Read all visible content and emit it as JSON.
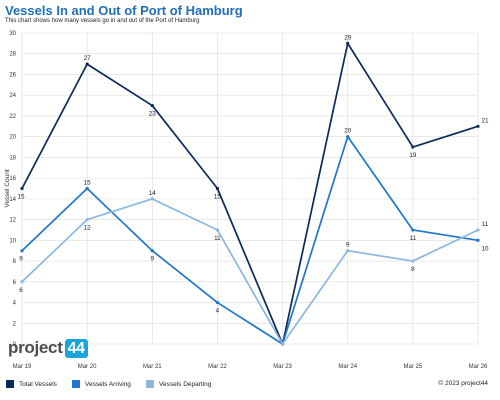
{
  "chart_data": {
    "type": "line",
    "title": "Vessels In and Out of Port of Hamburg",
    "subtitle": "This chart shows how many vessels go in and out of the Port of Hamburg",
    "ylabel": "Vessel Count",
    "xlabel": "",
    "categories": [
      "Mar 19",
      "Mar 20",
      "Mar 21",
      "Mar 22",
      "Mar 23",
      "Mar 24",
      "Mar 25",
      "Mar 26"
    ],
    "ylim": [
      0,
      30
    ],
    "yticks": [
      0,
      2,
      4,
      6,
      8,
      10,
      12,
      14,
      16,
      18,
      20,
      22,
      24,
      26,
      28,
      30
    ],
    "grid": true,
    "legend_position": "bottom-left",
    "series": [
      {
        "name": "Total Vessels",
        "color": "#0b2a5a",
        "values": [
          15,
          27,
          23,
          15,
          0,
          29,
          19,
          21
        ],
        "labels": [
          "15",
          "27",
          "23",
          "15",
          "",
          "29",
          "19",
          "21"
        ]
      },
      {
        "name": "Vessels Arriving",
        "color": "#1f77c9",
        "values": [
          9,
          15,
          9,
          4,
          0,
          20,
          11,
          10
        ],
        "labels": [
          "9",
          "15",
          "9",
          "4",
          "",
          "20",
          "11",
          "10"
        ]
      },
      {
        "name": "Vessels Departing",
        "color": "#8ab8e0",
        "values": [
          6,
          12,
          14,
          11,
          0,
          9,
          8,
          11
        ],
        "labels": [
          "6",
          "12",
          "14",
          "11",
          "",
          "9",
          "8",
          "11"
        ]
      }
    ]
  },
  "branding": {
    "logo_text": "project",
    "logo_badge": "44",
    "logo_color": "#1aa6d8"
  },
  "footer": {
    "copyright": "© 2023 project44"
  }
}
